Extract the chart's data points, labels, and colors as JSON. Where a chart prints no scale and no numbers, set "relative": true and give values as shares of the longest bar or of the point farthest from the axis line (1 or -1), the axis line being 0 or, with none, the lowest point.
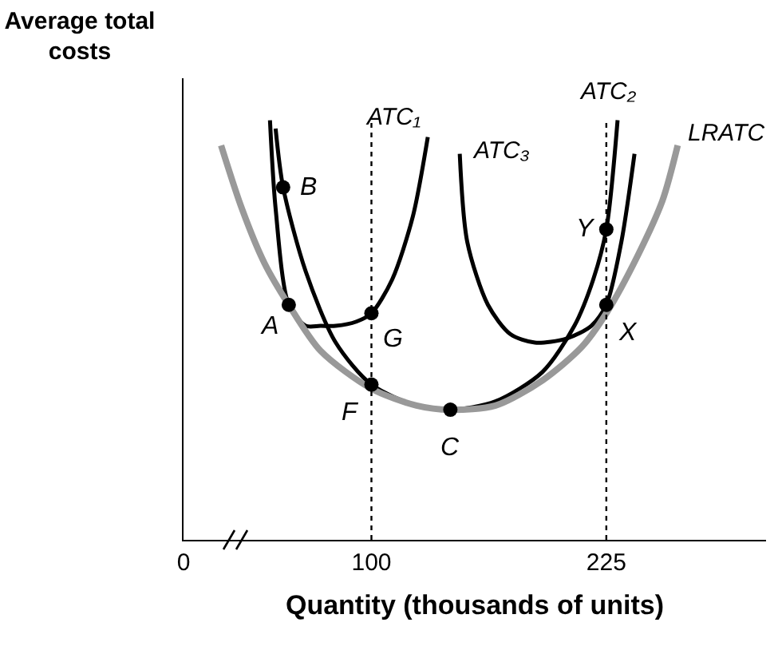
{
  "chart_data": {
    "type": "line",
    "relative": true,
    "xlabel": "Quantity (thousands of units)",
    "ylabel": "Average total costs",
    "xlim": [
      0,
      310
    ],
    "xticks": [
      0,
      100,
      225
    ],
    "grid": false,
    "legend": false,
    "marker": "none",
    "line_style": "solid",
    "series": [
      {
        "name": "ATC₁",
        "color": "#000000",
        "x": [
          46,
          49,
          56,
          65,
          73,
          81,
          92,
          100,
          111,
          122,
          130
        ],
        "values": [
          1.0,
          0.79,
          0.56,
          0.51,
          0.51,
          0.51,
          0.52,
          0.54,
          0.62,
          0.77,
          0.96
        ]
      },
      {
        "name": "ATC₂",
        "color": "#000000",
        "x": [
          49,
          53,
          65,
          81,
          100,
          124,
          142,
          166,
          191,
          208,
          218,
          225,
          231
        ],
        "values": [
          0.98,
          0.84,
          0.64,
          0.47,
          0.37,
          0.32,
          0.31,
          0.33,
          0.4,
          0.51,
          0.62,
          0.74,
          1.0
        ]
      },
      {
        "name": "ATC₃",
        "color": "#000000",
        "x": [
          147,
          151,
          162,
          174,
          187,
          204,
          217,
          225,
          233,
          240
        ],
        "values": [
          0.92,
          0.71,
          0.56,
          0.49,
          0.47,
          0.48,
          0.51,
          0.56,
          0.71,
          0.92
        ]
      },
      {
        "name": "LRATC",
        "color": "#999999",
        "x": [
          20,
          31,
          43,
          56,
          73,
          100,
          124,
          142,
          166,
          191,
          212,
          225,
          242,
          255,
          263
        ],
        "values": [
          0.94,
          0.79,
          0.66,
          0.56,
          0.45,
          0.36,
          0.32,
          0.31,
          0.32,
          0.38,
          0.46,
          0.54,
          0.68,
          0.81,
          0.94
        ]
      },
      {
        "type": "scatter",
        "marker": "circle",
        "color": "#000000",
        "x": [
          56,
          53,
          100,
          100,
          142,
          225,
          225
        ],
        "values": [
          0.56,
          0.84,
          0.54,
          0.37,
          0.31,
          0.74,
          0.56
        ]
      }
    ],
    "annotations": [
      {
        "text": "A",
        "x": 56,
        "y": 0.56
      },
      {
        "text": "B",
        "x": 53,
        "y": 0.84
      },
      {
        "text": "G",
        "x": 100,
        "y": 0.54
      },
      {
        "text": "F",
        "x": 100,
        "y": 0.37
      },
      {
        "text": "C",
        "x": 142,
        "y": 0.31
      },
      {
        "text": "Y",
        "x": 225,
        "y": 0.74
      },
      {
        "text": "X",
        "x": 225,
        "y": 0.56
      }
    ],
    "ref_lines": [
      {
        "axis": "x",
        "value": 100,
        "line_style": "dotted",
        "color": "#000000"
      },
      {
        "axis": "x",
        "value": 225,
        "line_style": "dotted",
        "color": "#000000"
      }
    ]
  }
}
